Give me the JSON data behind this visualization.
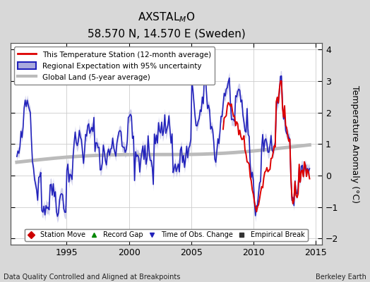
{
  "title_main": "AXSTAL",
  "title_sub_script": "M",
  "title_end": "O",
  "subtitle": "58.570 N, 14.570 E (Sweden)",
  "xlabel_bottom": "Data Quality Controlled and Aligned at Breakpoints",
  "xlabel_right": "Berkeley Earth",
  "ylabel": "Temperature Anomaly (°C)",
  "xlim": [
    1990.5,
    2015.5
  ],
  "ylim": [
    -2.2,
    4.2
  ],
  "yticks": [
    -2,
    -1,
    0,
    1,
    2,
    3,
    4
  ],
  "xticks": [
    1995,
    2000,
    2005,
    2010,
    2015
  ],
  "bg_color": "#d8d8d8",
  "plot_bg_color": "#ffffff",
  "legend_items": [
    {
      "label": "This Temperature Station (12-month average)",
      "color": "#dd0000",
      "lw": 1.5
    },
    {
      "label": "Regional Expectation with 95% uncertainty",
      "color": "#2222bb",
      "lw": 1.5
    },
    {
      "label": "Global Land (5-year average)",
      "color": "#bbbbbb",
      "lw": 3
    }
  ],
  "marker_legend": [
    {
      "label": "Station Move",
      "marker": "D",
      "color": "#cc0000"
    },
    {
      "label": "Record Gap",
      "marker": "^",
      "color": "#008800"
    },
    {
      "label": "Time of Obs. Change",
      "marker": "v",
      "color": "#2222bb"
    },
    {
      "label": "Empirical Break",
      "marker": "s",
      "color": "#333333"
    }
  ],
  "seed": 123
}
